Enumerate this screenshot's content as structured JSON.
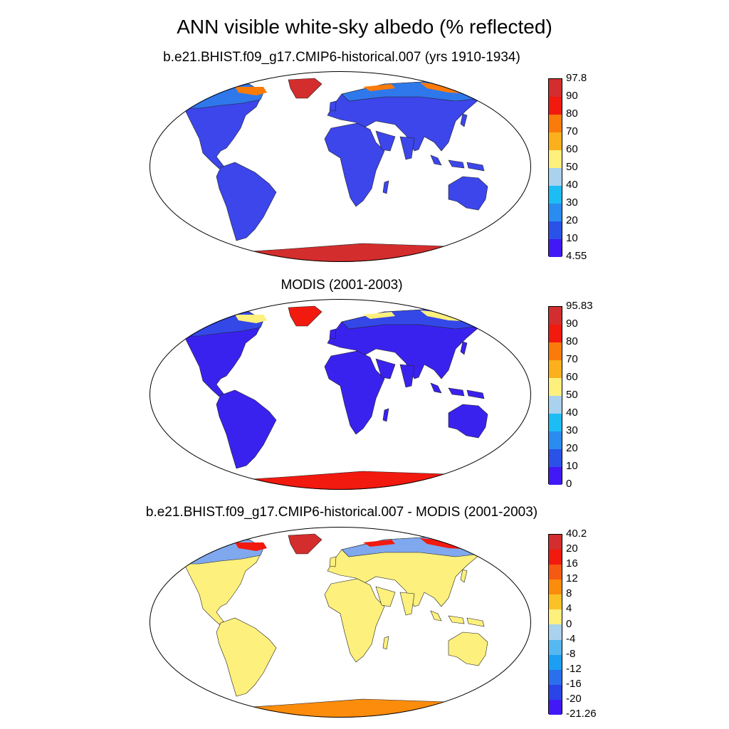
{
  "title": "ANN visible white-sky albedo (% reflected)",
  "panels": [
    {
      "id": "model",
      "title": "b.e21.BHIST.f09_g17.CMIP6-historical.007 (yrs 1910-1934)",
      "colorbar": {
        "labels": [
          "97.8",
          "90",
          "80",
          "70",
          "60",
          "50",
          "40",
          "30",
          "20",
          "10",
          "4.55"
        ],
        "colors": [
          "#d42d2d",
          "#f2190f",
          "#fb7b0a",
          "#fbb01c",
          "#fdf07d",
          "#a8d2ee",
          "#1cbdf5",
          "#2a8cf0",
          "#2a52e8",
          "#4218f6"
        ]
      },
      "fills": {
        "land": "#3c46ea",
        "north": "#2f78ec",
        "antarctica": "#d42d2d",
        "greenland": "#d42d2d",
        "arctic_fringe": "#fb7b0a"
      }
    },
    {
      "id": "obs",
      "title": "MODIS (2001-2003)",
      "colorbar": {
        "labels": [
          "95.83",
          "90",
          "80",
          "70",
          "60",
          "50",
          "40",
          "30",
          "20",
          "10",
          "0"
        ],
        "colors": [
          "#d42d2d",
          "#f2190f",
          "#fb7b0a",
          "#fbb01c",
          "#fdf07d",
          "#a8d2ee",
          "#1cbdf5",
          "#2a8cf0",
          "#2a52e8",
          "#4218f6"
        ]
      },
      "fills": {
        "land": "#3a22ee",
        "north": "#3448e8",
        "antarctica": "#f2190f",
        "greenland": "#f2190f",
        "arctic_fringe": "#fdf07d"
      }
    },
    {
      "id": "diff",
      "title": "b.e21.BHIST.f09_g17.CMIP6-historical.007 - MODIS (2001-2003)",
      "colorbar": {
        "labels": [
          "40.2",
          "20",
          "16",
          "12",
          "8",
          "4",
          "0",
          "-4",
          "-8",
          "-12",
          "-16",
          "-20",
          "-21.26"
        ],
        "colors": [
          "#d42d2d",
          "#f2190f",
          "#f65a12",
          "#fb8c0c",
          "#fbc226",
          "#fdf07d",
          "#a8d2ee",
          "#55b8f1",
          "#1c9ff3",
          "#2a70ec",
          "#2a44e8",
          "#4218f6"
        ]
      },
      "fills": {
        "land": "#fdf07d",
        "north": "#7fa8ee",
        "antarctica": "#fb8c0c",
        "greenland": "#d42d2d",
        "arctic_fringe": "#f2190f"
      }
    }
  ]
}
